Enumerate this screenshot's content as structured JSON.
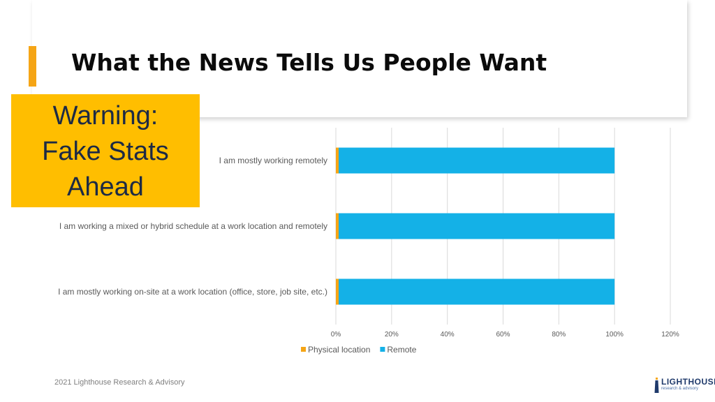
{
  "slide": {
    "title": "What the News Tells Us People Want",
    "warning_lines": [
      "Warning:",
      "Fake Stats",
      "Ahead"
    ],
    "footer": "2021 Lighthouse Research & Advisory"
  },
  "logo": {
    "name": "LIGHTHOUSE",
    "tagline": "research & advisory",
    "icon": "lighthouse-icon"
  },
  "colors": {
    "accent": "#f5a516",
    "warning_bg": "#ffbe00",
    "physical": "#f5a516",
    "remote": "#14b1e7"
  },
  "chart_data": {
    "type": "bar",
    "orientation": "horizontal",
    "stacked": true,
    "categories": [
      "I am mostly working remotely",
      "I am working a mixed or hybrid schedule at a work location and remotely",
      "I am mostly working on-site at a work location (office, store, job site, etc.)"
    ],
    "series": [
      {
        "name": "Physical  location",
        "color": "#f5a516",
        "values": [
          1,
          1,
          1
        ]
      },
      {
        "name": "Remote",
        "color": "#14b1e7",
        "values": [
          99,
          99,
          99
        ]
      }
    ],
    "x_ticks": [
      "0%",
      "20%",
      "40%",
      "60%",
      "80%",
      "100%",
      "120%"
    ],
    "xlim": [
      0,
      120
    ],
    "grid": true,
    "legend_position": "bottom"
  }
}
